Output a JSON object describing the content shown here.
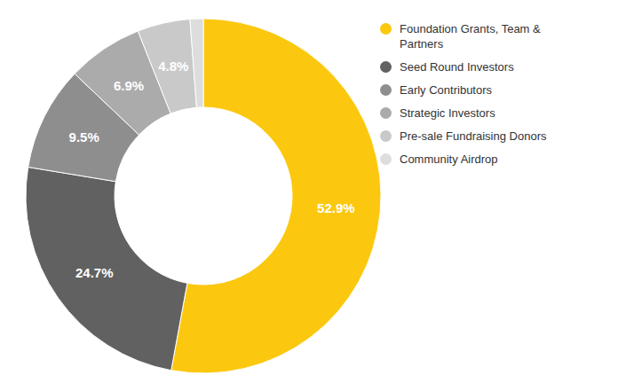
{
  "chart_data": {
    "type": "pie",
    "categories": [
      "Foundation Grants, Team & Partners",
      "Seed Round Investors",
      "Early Contributors",
      "Strategic Investors",
      "Pre-sale Fundraising Donors",
      "Community Airdrop"
    ],
    "values": [
      52.9,
      24.7,
      9.5,
      6.9,
      4.8,
      1.2
    ],
    "value_labels": [
      "52.9%",
      "24.7%",
      "9.5%",
      "6.9%",
      "4.8%",
      null
    ],
    "colors": [
      "#fcc80f",
      "#616161",
      "#8e8e8e",
      "#ababab",
      "#c9c9c9",
      "#dddddd"
    ],
    "data_labels": true,
    "legend": "right"
  }
}
